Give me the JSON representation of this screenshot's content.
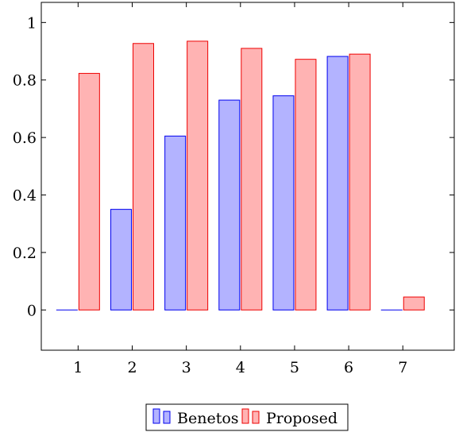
{
  "chart_data": {
    "type": "bar",
    "x": [
      1,
      2,
      3,
      4,
      5,
      6,
      7
    ],
    "xticks": [
      "1",
      "2",
      "3",
      "4",
      "5",
      "6",
      "7"
    ],
    "yticks": [
      "0",
      "0.2",
      "0.4",
      "0.6",
      "0.8",
      "1"
    ],
    "ylim": [
      -0.14,
      1.07
    ],
    "xlim": [
      0.32,
      7.95
    ],
    "grid": false,
    "legend_position": "bottom-center",
    "series": [
      {
        "name": "Benetos",
        "values": [
          0.0,
          0.35,
          0.605,
          0.73,
          0.745,
          0.882,
          0.0
        ],
        "fill": "#b3b3ff",
        "stroke": "#0000ee"
      },
      {
        "name": "Proposed",
        "values": [
          0.823,
          0.927,
          0.935,
          0.91,
          0.872,
          0.89,
          0.045
        ],
        "fill": "#ffb3b3",
        "stroke": "#ee0000"
      }
    ]
  }
}
